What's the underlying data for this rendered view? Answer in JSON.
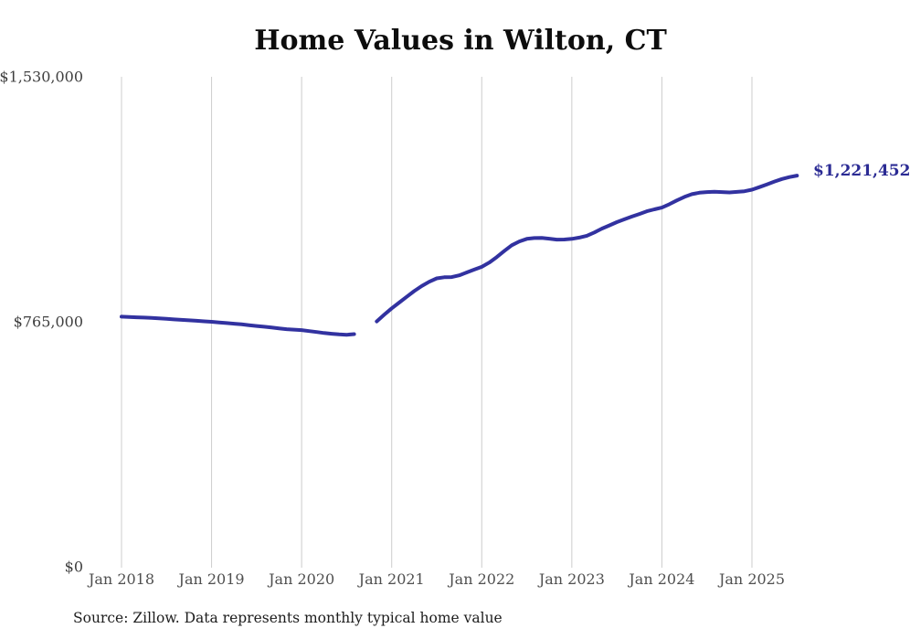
{
  "title": "Home Values in Wilton, CT",
  "source_note": "Source: Zillow. Data represents monthly typical home value",
  "end_label": "$1,221,452",
  "colors": {
    "line": "#3232a0",
    "end_label": "#2b2b94",
    "grid": "#cccccc",
    "y_tick_text": "#3f3f3f",
    "x_tick_text": "#4f4f4f",
    "title_text": "#0d0d0d",
    "source_text": "#1c1c1c",
    "background": "#ffffff"
  },
  "chart_data": {
    "type": "line",
    "title": "Home Values in Wilton, CT",
    "xlabel": "",
    "ylabel": "",
    "x_start": "2018-01",
    "x_interval": "monthly",
    "x_tick_labels": [
      "Jan 2018",
      "Jan 2019",
      "Jan 2020",
      "Jan 2021",
      "Jan 2022",
      "Jan 2023",
      "Jan 2024",
      "Jan 2025"
    ],
    "y_ticks": [
      {
        "value": 0,
        "label": "$0"
      },
      {
        "value": 765000,
        "label": "$765,000"
      },
      {
        "value": 1530000,
        "label": "$1,530,000"
      }
    ],
    "ylim": [
      0,
      1530000
    ],
    "grid": "vertical-only",
    "legend": "none",
    "data_gap": "Sep 2020 - Oct 2020 (nulls in values)",
    "series": [
      {
        "name": "Monthly typical home value",
        "last_value": 1221452,
        "last_value_label": "$1,221,452",
        "values": [
          781000,
          780000,
          779000,
          778000,
          777000,
          775500,
          774000,
          772500,
          771000,
          769500,
          768000,
          766500,
          765000,
          763000,
          761000,
          759000,
          757000,
          754500,
          752000,
          749500,
          747000,
          744500,
          742000,
          740500,
          739000,
          736000,
          733000,
          730000,
          727500,
          725500,
          724500,
          726500,
          null,
          null,
          766000,
          787000,
          807000,
          825000,
          843000,
          861000,
          876500,
          890000,
          900500,
          904000,
          904500,
          910000,
          919000,
          928000,
          936500,
          950000,
          967000,
          986000,
          1004000,
          1016000,
          1024000,
          1026500,
          1027000,
          1024500,
          1021500,
          1022000,
          1024000,
          1028000,
          1033500,
          1044000,
          1056000,
          1066000,
          1076000,
          1085000,
          1093500,
          1101500,
          1110000,
          1116000,
          1121500,
          1132000,
          1144000,
          1155000,
          1163500,
          1168000,
          1170000,
          1171000,
          1170000,
          1169000,
          1170500,
          1172500,
          1177500,
          1185500,
          1194000,
          1203000,
          1211000,
          1217000,
          1221452
        ]
      }
    ]
  }
}
